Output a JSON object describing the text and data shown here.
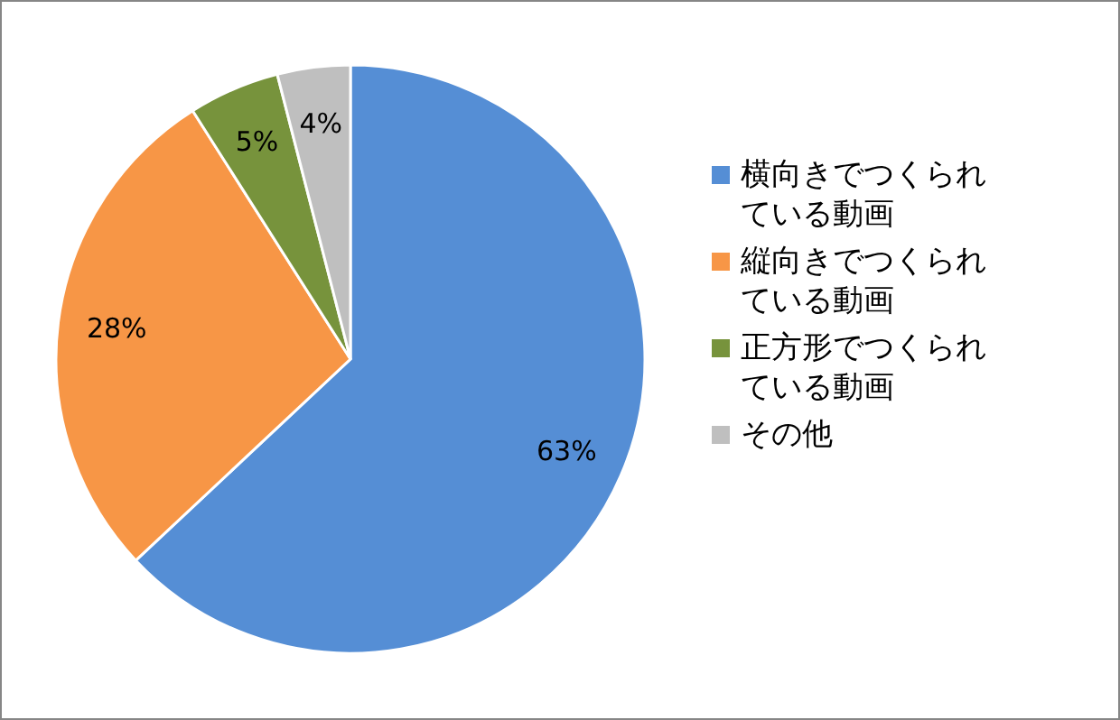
{
  "chart_data": {
    "type": "pie",
    "categories": [
      "横向きでつくられている動画",
      "縦向きでつくられている動画",
      "正方形でつくられている動画",
      "その他"
    ],
    "values": [
      63,
      28,
      5,
      4
    ],
    "colors": [
      "#558ed5",
      "#f79646",
      "#77933c",
      "#bfbfbf"
    ],
    "value_labels": [
      "63%",
      "28%",
      "5%",
      "4%"
    ],
    "legend": "right"
  }
}
